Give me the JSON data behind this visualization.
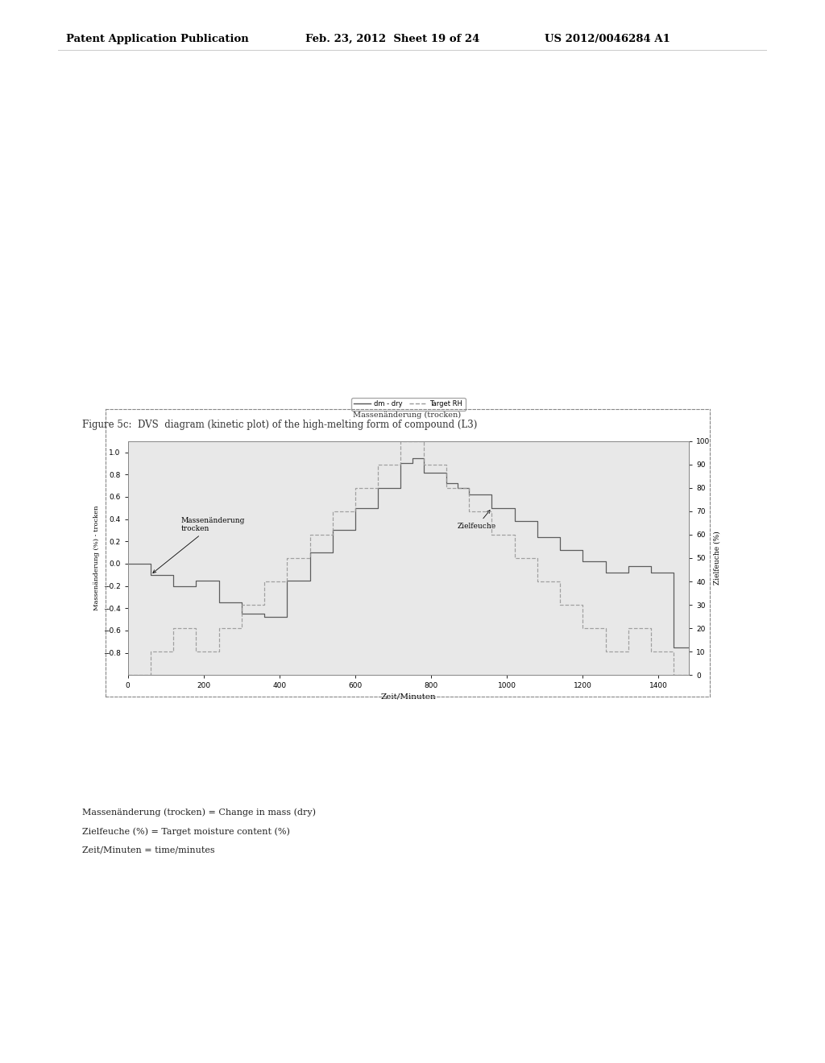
{
  "figure_caption": "Figure 5c:  DVS  diagram (kinetic plot) of the high-melting form of compound (L3)",
  "header_left": "Patent Application Publication",
  "header_mid": "Feb. 23, 2012  Sheet 19 of 24",
  "header_right": "US 2012/0046284 A1",
  "chart_title": "Massenänderung (trocken)",
  "legend_label1": "dm - dry",
  "legend_label2": "Target RH",
  "xlabel": "Zeit/Minuten",
  "ylabel_left": "Massenänderung (%) - trocken",
  "ylabel_right": "Zielfeuche (%)",
  "annotation1": "Massenänderung\ntrocken",
  "annotation2": "Zielfeuche",
  "xlim": [
    0,
    1480
  ],
  "ylim_left": [
    -1.0,
    1.1
  ],
  "ylim_right": [
    0,
    100
  ],
  "xticks": [
    0,
    200,
    400,
    600,
    800,
    1000,
    1200,
    1400
  ],
  "yticks_left": [
    -0.8,
    -0.6,
    -0.4,
    -0.2,
    0.0,
    0.2,
    0.4,
    0.6,
    0.8,
    1.0
  ],
  "yticks_right": [
    0,
    10,
    20,
    30,
    40,
    50,
    60,
    70,
    80,
    90,
    100
  ],
  "footnote1": "Massenänderung (trocken) = Change in mass (dry)",
  "footnote2": "Zielfeuche (%) = Target moisture content (%)",
  "footnote3": "Zeit/Minuten = time/minutes",
  "background_color": "#ffffff",
  "plot_bg_color": "#e8e8e8",
  "line_color_mass": "#555555",
  "line_color_target": "#999999",
  "target_rh_data": [
    [
      0,
      0
    ],
    [
      60,
      0
    ],
    [
      60,
      10
    ],
    [
      120,
      10
    ],
    [
      120,
      20
    ],
    [
      180,
      20
    ],
    [
      180,
      10
    ],
    [
      240,
      10
    ],
    [
      240,
      20
    ],
    [
      300,
      20
    ],
    [
      300,
      30
    ],
    [
      360,
      30
    ],
    [
      360,
      40
    ],
    [
      420,
      40
    ],
    [
      420,
      50
    ],
    [
      480,
      50
    ],
    [
      480,
      60
    ],
    [
      540,
      60
    ],
    [
      540,
      70
    ],
    [
      600,
      70
    ],
    [
      600,
      80
    ],
    [
      660,
      80
    ],
    [
      660,
      90
    ],
    [
      720,
      90
    ],
    [
      720,
      100
    ],
    [
      780,
      100
    ],
    [
      780,
      90
    ],
    [
      840,
      90
    ],
    [
      840,
      80
    ],
    [
      900,
      80
    ],
    [
      900,
      70
    ],
    [
      960,
      70
    ],
    [
      960,
      60
    ],
    [
      1020,
      60
    ],
    [
      1020,
      50
    ],
    [
      1080,
      50
    ],
    [
      1080,
      40
    ],
    [
      1140,
      40
    ],
    [
      1140,
      30
    ],
    [
      1200,
      30
    ],
    [
      1200,
      20
    ],
    [
      1260,
      20
    ],
    [
      1260,
      10
    ],
    [
      1320,
      10
    ],
    [
      1320,
      20
    ],
    [
      1380,
      20
    ],
    [
      1380,
      10
    ],
    [
      1440,
      10
    ],
    [
      1440,
      0
    ],
    [
      1480,
      0
    ]
  ],
  "mass_change_data": [
    [
      0,
      0.0
    ],
    [
      60,
      0.0
    ],
    [
      60,
      -0.1
    ],
    [
      120,
      -0.1
    ],
    [
      120,
      -0.2
    ],
    [
      180,
      -0.2
    ],
    [
      180,
      -0.15
    ],
    [
      240,
      -0.15
    ],
    [
      240,
      -0.35
    ],
    [
      300,
      -0.35
    ],
    [
      300,
      -0.45
    ],
    [
      360,
      -0.45
    ],
    [
      360,
      -0.48
    ],
    [
      420,
      -0.48
    ],
    [
      420,
      -0.15
    ],
    [
      480,
      -0.15
    ],
    [
      480,
      0.1
    ],
    [
      540,
      0.1
    ],
    [
      540,
      0.3
    ],
    [
      600,
      0.3
    ],
    [
      600,
      0.5
    ],
    [
      660,
      0.5
    ],
    [
      660,
      0.68
    ],
    [
      720,
      0.68
    ],
    [
      720,
      0.9
    ],
    [
      750,
      0.9
    ],
    [
      750,
      0.95
    ],
    [
      780,
      0.95
    ],
    [
      780,
      0.82
    ],
    [
      840,
      0.82
    ],
    [
      840,
      0.72
    ],
    [
      870,
      0.72
    ],
    [
      870,
      0.68
    ],
    [
      900,
      0.68
    ],
    [
      900,
      0.62
    ],
    [
      960,
      0.62
    ],
    [
      960,
      0.5
    ],
    [
      1020,
      0.5
    ],
    [
      1020,
      0.38
    ],
    [
      1080,
      0.38
    ],
    [
      1080,
      0.24
    ],
    [
      1140,
      0.24
    ],
    [
      1140,
      0.12
    ],
    [
      1200,
      0.12
    ],
    [
      1200,
      0.02
    ],
    [
      1260,
      0.02
    ],
    [
      1260,
      -0.08
    ],
    [
      1320,
      -0.08
    ],
    [
      1320,
      -0.02
    ],
    [
      1380,
      -0.02
    ],
    [
      1380,
      -0.08
    ],
    [
      1440,
      -0.08
    ],
    [
      1440,
      -0.75
    ],
    [
      1480,
      -0.75
    ]
  ]
}
